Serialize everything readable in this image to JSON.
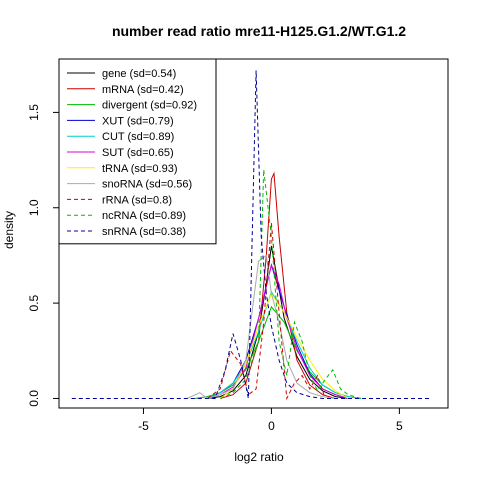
{
  "chart_data": {
    "type": "line",
    "title": "number read ratio mre11-H125.G1.2/WT.G1.2",
    "xlabel": "log2 ratio",
    "ylabel": "density",
    "xlim": [
      -8.3,
      6.9
    ],
    "ylim": [
      -0.05,
      1.78
    ],
    "xticks": [
      -5,
      0,
      5
    ],
    "yticks": [
      0.0,
      0.5,
      1.0,
      1.5
    ],
    "xtick_labels": [
      "-5",
      "0",
      "5"
    ],
    "ytick_labels": [
      "0.0",
      "0.5",
      "1.0",
      "1.5"
    ],
    "grid": false,
    "legend_position": "top-left",
    "series": [
      {
        "name": "gene (sd=0.54)",
        "color": "#000000",
        "dash": "solid",
        "x": [
          -2.5,
          -2.0,
          -1.5,
          -1.0,
          -0.5,
          -0.2,
          0.0,
          0.2,
          0.5,
          1.0,
          1.5,
          2.0,
          2.5,
          3.0
        ],
        "y": [
          0.0,
          0.01,
          0.04,
          0.12,
          0.35,
          0.6,
          0.8,
          0.65,
          0.42,
          0.22,
          0.1,
          0.04,
          0.01,
          0.0
        ]
      },
      {
        "name": "mRNA (sd=0.42)",
        "color": "#cc0000",
        "dash": "solid",
        "x": [
          -2.0,
          -1.5,
          -1.0,
          -0.5,
          -0.2,
          0.0,
          0.1,
          0.3,
          0.6,
          1.0,
          1.5,
          2.0,
          2.5
        ],
        "y": [
          0.0,
          0.02,
          0.08,
          0.3,
          0.75,
          1.15,
          1.18,
          0.85,
          0.45,
          0.2,
          0.07,
          0.02,
          0.0
        ]
      },
      {
        "name": "divergent (sd=0.92)",
        "color": "#00bb00",
        "dash": "solid",
        "x": [
          -3.0,
          -2.5,
          -2.0,
          -1.5,
          -1.0,
          -0.5,
          0.0,
          0.5,
          1.0,
          1.5,
          2.0,
          2.5,
          3.0,
          3.5
        ],
        "y": [
          0.0,
          0.01,
          0.03,
          0.07,
          0.15,
          0.3,
          0.48,
          0.4,
          0.25,
          0.14,
          0.07,
          0.03,
          0.01,
          0.0
        ]
      },
      {
        "name": "XUT (sd=0.79)",
        "color": "#0000cc",
        "dash": "solid",
        "x": [
          -2.5,
          -2.0,
          -1.5,
          -1.0,
          -0.5,
          0.0,
          0.5,
          1.0,
          1.5,
          2.0,
          2.5,
          3.0
        ],
        "y": [
          0.0,
          0.03,
          0.08,
          0.2,
          0.42,
          0.7,
          0.48,
          0.28,
          0.13,
          0.05,
          0.02,
          0.0
        ]
      },
      {
        "name": "CUT (sd=0.89)",
        "color": "#00cccc",
        "dash": "solid",
        "x": [
          -2.5,
          -2.0,
          -1.5,
          -1.0,
          -0.5,
          0.0,
          0.5,
          1.0,
          1.5,
          2.0,
          2.5,
          3.0,
          3.5
        ],
        "y": [
          0.0,
          0.03,
          0.08,
          0.18,
          0.35,
          0.56,
          0.45,
          0.3,
          0.16,
          0.07,
          0.03,
          0.01,
          0.0
        ]
      },
      {
        "name": "SUT (sd=0.65)",
        "color": "#dd00dd",
        "dash": "solid",
        "x": [
          -2.5,
          -2.0,
          -1.5,
          -1.0,
          -0.5,
          0.0,
          0.3,
          0.6,
          1.0,
          1.5,
          2.0,
          2.5,
          3.0
        ],
        "y": [
          0.0,
          0.02,
          0.06,
          0.16,
          0.42,
          0.7,
          0.6,
          0.42,
          0.26,
          0.12,
          0.05,
          0.02,
          0.0
        ]
      },
      {
        "name": "tRNA (sd=0.93)",
        "color": "#ffee00",
        "dash": "solid",
        "x": [
          -2.0,
          -1.5,
          -1.0,
          -0.5,
          0.0,
          0.5,
          1.0,
          1.5,
          2.0,
          2.5,
          3.0
        ],
        "y": [
          0.0,
          0.05,
          0.18,
          0.38,
          0.55,
          0.45,
          0.32,
          0.2,
          0.1,
          0.04,
          0.0
        ]
      },
      {
        "name": "snoRNA (sd=0.56)",
        "color": "#aaaaaa",
        "dash": "solid",
        "x": [
          -3.3,
          -2.8,
          -2.5,
          -2.0,
          -1.5,
          -1.0,
          -0.5,
          -0.2,
          0.0,
          0.3,
          0.6,
          1.0,
          1.5,
          2.0,
          2.5
        ],
        "y": [
          0.0,
          0.03,
          0.0,
          0.02,
          0.05,
          0.2,
          0.72,
          0.75,
          0.55,
          0.4,
          0.2,
          0.08,
          0.03,
          0.01,
          0.0
        ]
      },
      {
        "name": "rRNA (sd=0.8)",
        "color": "#cc0000",
        "dash": "dashed",
        "x": [
          -2.5,
          -2.0,
          -1.6,
          -1.2,
          -0.9,
          -0.6,
          -0.3,
          0.0,
          0.3,
          0.6,
          0.9,
          1.2,
          1.5,
          1.8,
          2.1
        ],
        "y": [
          0.0,
          0.05,
          0.25,
          0.18,
          0.02,
          0.05,
          0.4,
          0.92,
          0.45,
          0.0,
          0.08,
          0.12,
          0.05,
          0.12,
          0.0
        ]
      },
      {
        "name": "ncRNA (sd=0.89)",
        "color": "#00bb00",
        "dash": "dashed",
        "x": [
          -2.0,
          -1.5,
          -1.0,
          -0.5,
          -0.3,
          0.0,
          0.3,
          0.6,
          0.9,
          1.2,
          1.5,
          1.8,
          2.1,
          2.4,
          2.7,
          3.0,
          3.5
        ],
        "y": [
          0.0,
          0.03,
          0.1,
          0.3,
          1.2,
          0.85,
          0.3,
          0.12,
          0.4,
          0.3,
          0.12,
          0.04,
          0.1,
          0.15,
          0.05,
          0.02,
          0.0
        ]
      },
      {
        "name": "snRNA (sd=0.38)",
        "color": "#000099",
        "dash": "dashed",
        "x": [
          -7.8,
          -2.2,
          -1.8,
          -1.5,
          -1.2,
          -0.9,
          -0.6,
          -0.4,
          -0.2,
          0.0,
          0.3,
          0.6,
          1.0,
          1.5,
          2.0,
          6.2
        ],
        "y": [
          0.0,
          0.0,
          0.15,
          0.34,
          0.2,
          0.0,
          1.72,
          0.85,
          0.55,
          0.38,
          0.2,
          0.08,
          0.03,
          0.01,
          0.0,
          0.0
        ]
      }
    ]
  }
}
